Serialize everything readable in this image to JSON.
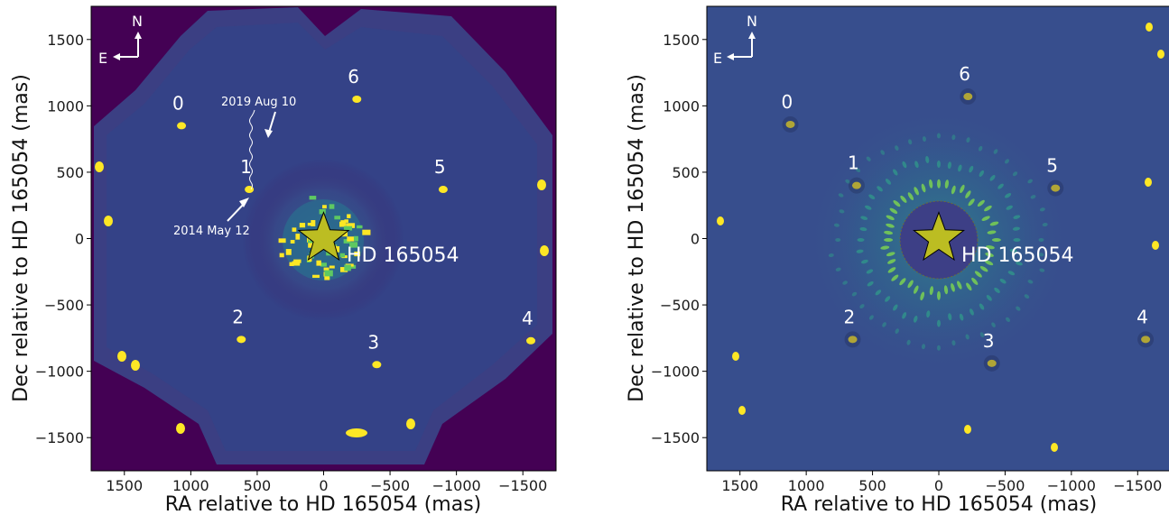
{
  "chart_data": [
    {
      "type": "image",
      "xlabel": "RA relative to HD 165054 (mas)",
      "ylabel": "Dec relative to HD 165054 (mas)",
      "xlim": [
        1750,
        -1750
      ],
      "ylim": [
        -1750,
        1750
      ],
      "xticks": [
        1500,
        1000,
        500,
        0,
        -500,
        -1000,
        -1500
      ],
      "yticks": [
        -1500,
        -1000,
        -500,
        0,
        500,
        1000,
        1500
      ],
      "xtick_labels": [
        "1500",
        "1000",
        "500",
        "0",
        "−500",
        "−1000",
        "−1500"
      ],
      "ytick_labels": [
        "−1500",
        "−1000",
        "−500",
        "0",
        "500",
        "1000",
        "1500"
      ],
      "colormap_colors": {
        "background": "#440154",
        "mid": "#31688e",
        "bright": "#fde725"
      },
      "star": {
        "name": "HD 165054",
        "ra": 0,
        "dec": 0,
        "color": "#bcbd22"
      },
      "sources": [
        {
          "label": "0",
          "ra": 1070,
          "dec": 850
        },
        {
          "label": "1",
          "ra": 560,
          "dec": 370
        },
        {
          "label": "2",
          "ra": 620,
          "dec": -760
        },
        {
          "label": "3",
          "ra": -400,
          "dec": -950
        },
        {
          "label": "4",
          "ra": -1560,
          "dec": -770
        },
        {
          "label": "5",
          "ra": -900,
          "dec": 370
        },
        {
          "label": "6",
          "ra": -250,
          "dec": 1050
        }
      ],
      "annotations": [
        {
          "text": "2019 Aug 10",
          "ra": 440,
          "dec": 820
        },
        {
          "text": "2014 May 12",
          "ra": 560,
          "dec": 370
        }
      ],
      "compass": {
        "north": "N",
        "east": "E"
      }
    },
    {
      "type": "image",
      "xlabel": "RA relative to HD 165054 (mas)",
      "ylabel": "Dec relative to HD 165054 (mas)",
      "xlim": [
        1750,
        -1750
      ],
      "ylim": [
        -1750,
        1750
      ],
      "xticks": [
        1500,
        1000,
        500,
        0,
        -500,
        -1000,
        -1500
      ],
      "yticks": [
        -1500,
        -1000,
        -500,
        0,
        500,
        1000,
        1500
      ],
      "xtick_labels": [
        "1500",
        "1000",
        "500",
        "0",
        "−500",
        "−1000",
        "−1500"
      ],
      "ytick_labels": [
        "−1500",
        "−1000",
        "−500",
        "0",
        "500",
        "1000",
        "1500"
      ],
      "colormap_colors": {
        "background": "#3b4d8f",
        "mid": "#2a7b8e",
        "bright": "#fde725"
      },
      "star": {
        "name": "HD 165054",
        "ra": 0,
        "dec": 0,
        "color": "#bcbd22"
      },
      "sources": [
        {
          "label": "0",
          "ra": 1120,
          "dec": 860
        },
        {
          "label": "1",
          "ra": 620,
          "dec": 400
        },
        {
          "label": "2",
          "ra": 650,
          "dec": -760
        },
        {
          "label": "3",
          "ra": -400,
          "dec": -940
        },
        {
          "label": "4",
          "ra": -1560,
          "dec": -760
        },
        {
          "label": "5",
          "ra": -880,
          "dec": 380
        },
        {
          "label": "6",
          "ra": -220,
          "dec": 1070
        }
      ],
      "compass": {
        "north": "N",
        "east": "E"
      }
    }
  ]
}
